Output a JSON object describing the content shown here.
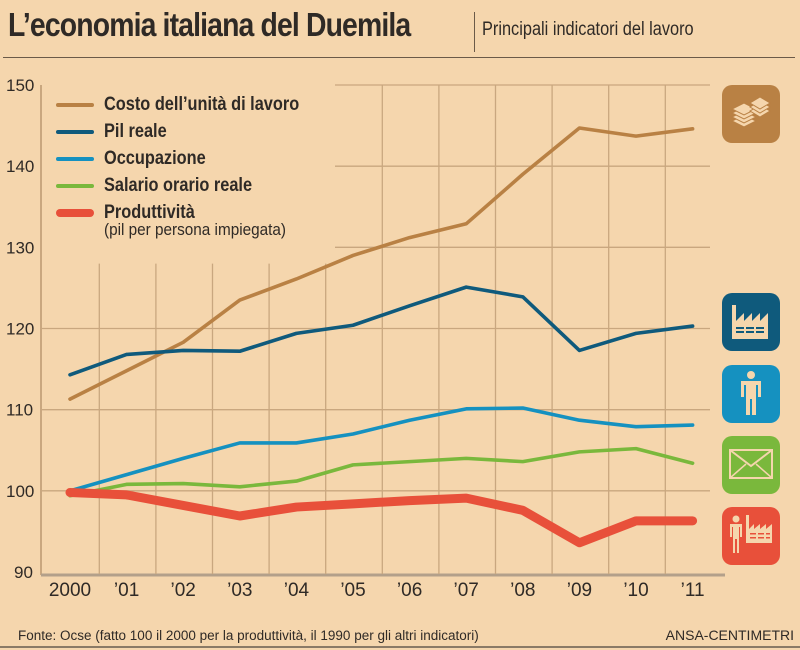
{
  "header": {
    "title": "L’economia italiana del Duemila",
    "subtitle": "Principali indicatori del lavoro"
  },
  "footer": {
    "source": "Fonte: Ocse (fatto 100 il 2000 per la produttività, il 1990 per gli altri indicatori)",
    "credit": "ANSA-CENTIMETRI"
  },
  "icons": [
    {
      "name": "money-stack-icon",
      "series": "Costo dell’unità di lavoro",
      "color": "#b98144"
    },
    {
      "name": "factory-icon",
      "series": "Pil reale",
      "color": "#0f5a7c"
    },
    {
      "name": "worker-icon",
      "series": "Occupazione",
      "color": "#1591c0"
    },
    {
      "name": "envelope-icon",
      "series": "Salario orario reale",
      "color": "#7ab83c"
    },
    {
      "name": "worker-factory-icon",
      "series": "Produttività",
      "color": "#e8503a"
    }
  ],
  "chart_data": {
    "type": "line",
    "title": "L’economia italiana del Duemila",
    "subtitle": "Principali indicatori del lavoro",
    "xlabel": "",
    "ylabel": "",
    "x": [
      "2000",
      "’01",
      "’02",
      "’03",
      "’04",
      "’05",
      "’06",
      "’07",
      "’08",
      "’09",
      "’10",
      "’11"
    ],
    "ylim": [
      90,
      150
    ],
    "yticks": [
      90,
      100,
      110,
      120,
      130,
      140,
      150
    ],
    "grid": true,
    "legend_position": "top-left",
    "series": [
      {
        "name": "Costo dell’unità di lavoro",
        "color": "#b98144",
        "width": "normal",
        "values": [
          111.3,
          114.8,
          118.3,
          123.5,
          126.1,
          129.0,
          131.2,
          132.9,
          139.0,
          144.7,
          143.7,
          144.6
        ]
      },
      {
        "name": "Pil reale",
        "color": "#0f5a7c",
        "width": "normal",
        "values": [
          114.3,
          116.8,
          117.3,
          117.2,
          119.4,
          120.4,
          122.8,
          125.1,
          123.9,
          117.3,
          119.4,
          120.3
        ]
      },
      {
        "name": "Occupazione",
        "color": "#1591c0",
        "width": "normal",
        "values": [
          100.0,
          102.0,
          104.0,
          105.9,
          105.9,
          107.0,
          108.7,
          110.1,
          110.2,
          108.7,
          107.9,
          108.1
        ]
      },
      {
        "name": "Salario orario reale",
        "color": "#7ab83c",
        "width": "normal",
        "values": [
          99.4,
          100.8,
          100.9,
          100.5,
          101.2,
          103.2,
          103.6,
          104.0,
          103.6,
          104.8,
          105.2,
          103.4
        ]
      },
      {
        "name": "Produttività",
        "sublabel": "(pil per persona impiegata)",
        "color": "#e8503a",
        "width": "thick",
        "values": [
          99.8,
          99.5,
          98.2,
          96.9,
          98.0,
          98.4,
          98.8,
          99.1,
          97.6,
          93.6,
          96.3,
          96.3
        ]
      }
    ]
  }
}
